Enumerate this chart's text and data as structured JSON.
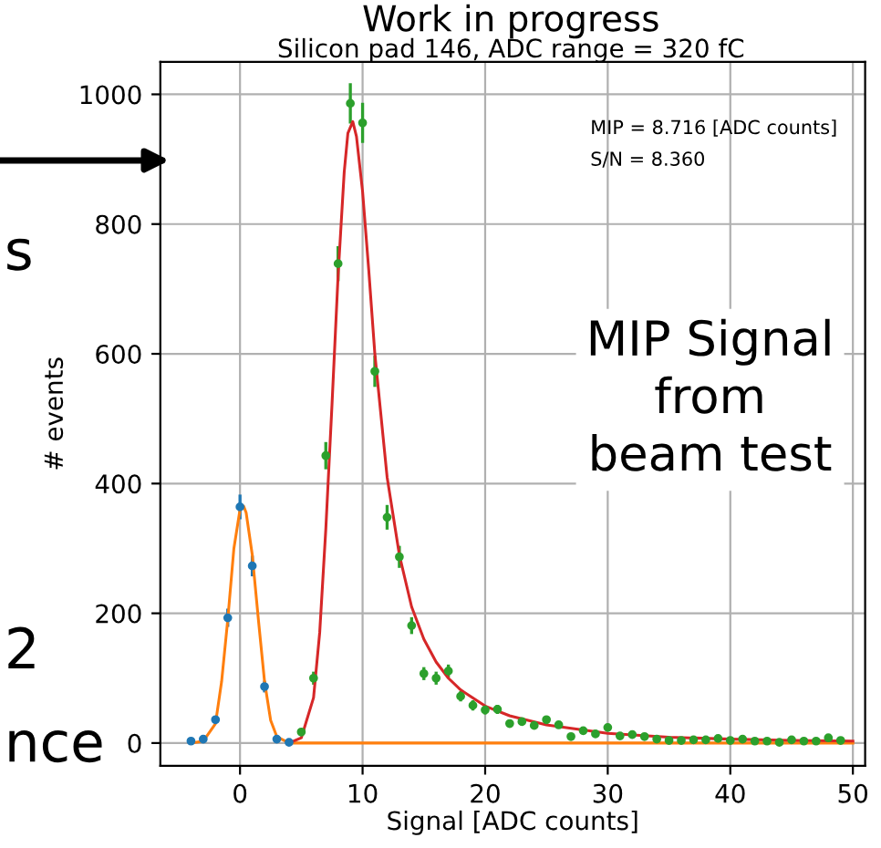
{
  "chart_data": {
    "type": "scatter",
    "title": "Work in progress",
    "subtitle": "Silicon pad 146, ADC range = 320 fC",
    "xlabel": "Signal [ADC counts]",
    "ylabel": "# events",
    "xlim": [
      -6.5,
      51
    ],
    "xticks": [
      0,
      10,
      20,
      30,
      40,
      50
    ],
    "ylim": [
      -35,
      1050
    ],
    "yticks": [
      0,
      200,
      400,
      600,
      800,
      1000
    ],
    "grid": true,
    "series": [
      {
        "marker": "circle",
        "color": "#1f77b4",
        "x": [
          -4,
          -3,
          -2,
          -1,
          0,
          1,
          2,
          3,
          4
        ],
        "values": [
          3,
          6,
          36,
          193,
          364,
          273,
          87,
          6,
          1
        ],
        "errors": [
          null,
          null,
          null,
          14,
          19,
          16,
          9,
          null,
          null
        ]
      },
      {
        "marker": "circle",
        "color": "#2ca02c",
        "x": [
          5,
          6,
          7,
          8,
          9,
          10,
          11,
          12,
          13,
          14,
          15,
          16,
          17,
          18,
          19,
          20,
          21,
          22,
          23,
          24,
          25,
          26,
          27,
          28,
          29,
          30,
          31,
          32,
          33,
          34,
          35,
          36,
          37,
          38,
          39,
          40,
          41,
          42,
          43,
          44,
          45,
          46,
          47,
          48,
          49
        ],
        "values": [
          17,
          100,
          443,
          739,
          986,
          956,
          573,
          348,
          287,
          181,
          107,
          100,
          111,
          72,
          58,
          51,
          52,
          30,
          33,
          27,
          36,
          28,
          10,
          19,
          14,
          24,
          11,
          13,
          10,
          6,
          4,
          4,
          5,
          5,
          7,
          4,
          6,
          3,
          3,
          1,
          5,
          3,
          3,
          8,
          4
        ],
        "errors": [
          null,
          10,
          21,
          27,
          31,
          31,
          24,
          19,
          17,
          13,
          10,
          10,
          10,
          8,
          8,
          7,
          7,
          null,
          6,
          null,
          6,
          null,
          null,
          null,
          null,
          null,
          null,
          null,
          null,
          null,
          null,
          null,
          null,
          null,
          null,
          null,
          null,
          null,
          null,
          null,
          null,
          null,
          null,
          null,
          null
        ]
      },
      {
        "type": "line",
        "color": "#ff7f0e",
        "x": [
          -4,
          -3,
          -2,
          -1.5,
          -1,
          -0.5,
          0,
          0.3,
          0.5,
          1,
          1.5,
          2,
          2.5,
          3,
          4,
          5,
          50
        ],
        "values": [
          0,
          3,
          30,
          95,
          190,
          300,
          360,
          365,
          355,
          290,
          190,
          95,
          35,
          10,
          0,
          0,
          0
        ]
      },
      {
        "type": "line",
        "color": "#d62728",
        "x": [
          4,
          5,
          6,
          6.5,
          7,
          7.5,
          8,
          8.5,
          8.8,
          9.2,
          9.5,
          10,
          10.5,
          11,
          12,
          13,
          14,
          15,
          16,
          17,
          18,
          20,
          22,
          25,
          30,
          35,
          40,
          45,
          50
        ],
        "values": [
          0,
          8,
          70,
          170,
          330,
          520,
          720,
          880,
          940,
          958,
          935,
          850,
          730,
          600,
          410,
          290,
          210,
          160,
          125,
          100,
          82,
          57,
          42,
          28,
          15,
          9,
          6,
          4,
          3
        ]
      }
    ],
    "annotations": [
      "MIP = 8.716 [ADC counts]",
      "S/N = 8.360",
      "MIP Signal\nfrom\nbeam test",
      "s",
      "2",
      "nce"
    ]
  }
}
